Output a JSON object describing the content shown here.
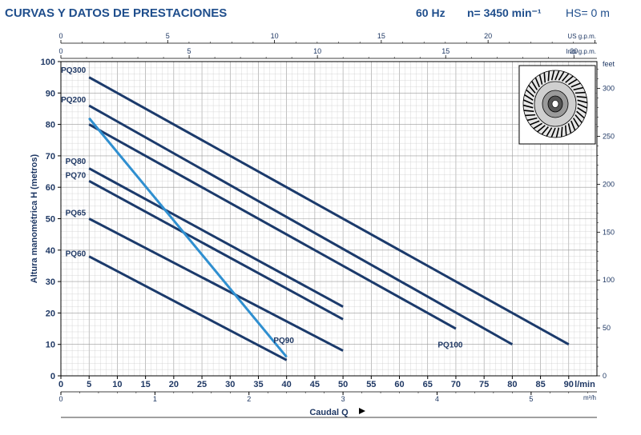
{
  "header": {
    "title": "CURVAS Y DATOS DE PRESTACIONES",
    "frequency": "60 Hz",
    "speed": "n= 3450 min⁻¹",
    "hs": "HS= 0 m"
  },
  "colors": {
    "curve": "#1b3a6b",
    "pq90": "#2f8fd0",
    "grid_minor": "#c9c9c9",
    "grid_major": "#9a9a9a",
    "text": "#1f3864"
  },
  "icons": [
    "impeller-icon",
    "axis-arrow-icon"
  ],
  "chart_data": {
    "type": "line",
    "x_label": "Caudal Q",
    "y_label": "Altura manométrica H (metros)",
    "x_unit": "l/min",
    "xlim": [
      0,
      95
    ],
    "ylim": [
      0,
      100
    ],
    "grid": true,
    "x_ticks": [
      0,
      5,
      10,
      15,
      20,
      25,
      30,
      35,
      40,
      45,
      50,
      55,
      60,
      65,
      70,
      75,
      80,
      85,
      90
    ],
    "y_ticks": [
      0,
      10,
      20,
      30,
      40,
      50,
      60,
      70,
      80,
      90,
      100
    ],
    "secondary_axes": {
      "us_gpm": {
        "label": "US g.p.m.",
        "ticks": [
          0,
          5,
          10,
          15,
          20
        ]
      },
      "imp_gpm": {
        "label": "Imp g.p.m.",
        "ticks": [
          0,
          5,
          10,
          15,
          20
        ]
      },
      "m3h": {
        "label": "m³/h",
        "ticks": [
          0,
          1,
          2,
          3,
          4,
          5
        ]
      },
      "feet": {
        "label": "feet",
        "ticks": [
          0,
          50,
          100,
          150,
          200,
          250,
          300
        ]
      }
    },
    "series": [
      {
        "name": "PQ300",
        "x": [
          5,
          90
        ],
        "y": [
          95,
          10
        ]
      },
      {
        "name": "PQ200",
        "x": [
          5,
          80
        ],
        "y": [
          86,
          10
        ]
      },
      {
        "name": "PQ100",
        "x": [
          5,
          70
        ],
        "y": [
          80,
          15
        ]
      },
      {
        "name": "PQ80",
        "x": [
          5,
          50
        ],
        "y": [
          66,
          22
        ]
      },
      {
        "name": "PQ70",
        "x": [
          5,
          50
        ],
        "y": [
          62,
          18
        ]
      },
      {
        "name": "PQ65",
        "x": [
          5,
          50
        ],
        "y": [
          50,
          8
        ]
      },
      {
        "name": "PQ60",
        "x": [
          5,
          40
        ],
        "y": [
          38,
          5
        ]
      },
      {
        "name": "PQ90",
        "x": [
          5,
          40
        ],
        "y": [
          82,
          6
        ]
      }
    ],
    "curve_labels": [
      "PQ300",
      "PQ200",
      "PQ80",
      "PQ70",
      "PQ65",
      "PQ60",
      "PQ90",
      "PQ100"
    ]
  }
}
